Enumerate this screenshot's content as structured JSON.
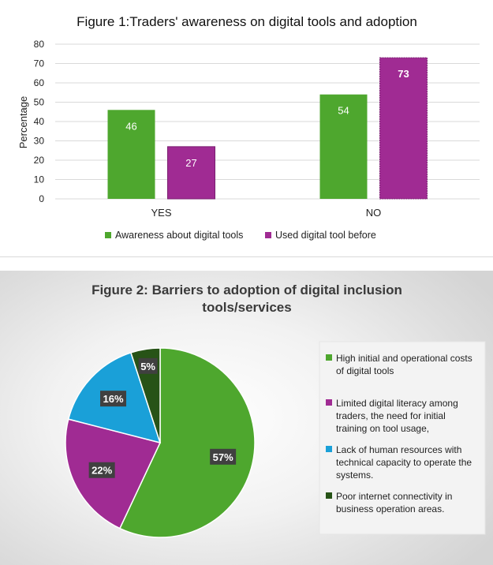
{
  "chart_data": [
    {
      "type": "bar",
      "title": "Figure 1:Traders' awareness on digital tools and adoption",
      "ylabel": "Percentage",
      "ylim": [
        0,
        80
      ],
      "yticks": [
        0,
        10,
        20,
        30,
        40,
        50,
        60,
        70,
        80
      ],
      "categories": [
        "YES",
        "NO"
      ],
      "series": [
        {
          "name": "Awareness about digital tools",
          "values": [
            46,
            54
          ],
          "color": "#4ea72e"
        },
        {
          "name": "Used digital tool before",
          "values": [
            27,
            73
          ],
          "color": "#a02b93"
        }
      ],
      "grid": true,
      "legend": "bottom"
    },
    {
      "type": "pie",
      "title_line1": "Figure 2: Barriers to adoption of digital inclusion",
      "title_line2": "tools/services",
      "slices": [
        {
          "label": "High initial and operational costs of digital tools",
          "lines": [
            "High initial and operational costs",
            "of digital tools"
          ],
          "value": 57,
          "text": "57%",
          "color": "#4ea72e"
        },
        {
          "label": "Limited digital literacy among traders, the need for initial training on tool usage,",
          "lines": [
            "Limited digital literacy among",
            "traders, the need for initial",
            "training on tool usage,"
          ],
          "value": 22,
          "text": "22%",
          "color": "#a02b93"
        },
        {
          "label": "Lack of human resources with technical capacity to operate the systems.",
          "lines": [
            "Lack of human resources with",
            "technical capacity to operate the",
            "systems."
          ],
          "value": 16,
          "text": "16%",
          "color": "#1aa0d8"
        },
        {
          "label": "Poor internet connectivity in business operation areas.",
          "lines": [
            "Poor internet connectivity in",
            "business operation areas."
          ],
          "value": 5,
          "text": "5%",
          "color": "#275317"
        }
      ],
      "legend": "right"
    }
  ]
}
